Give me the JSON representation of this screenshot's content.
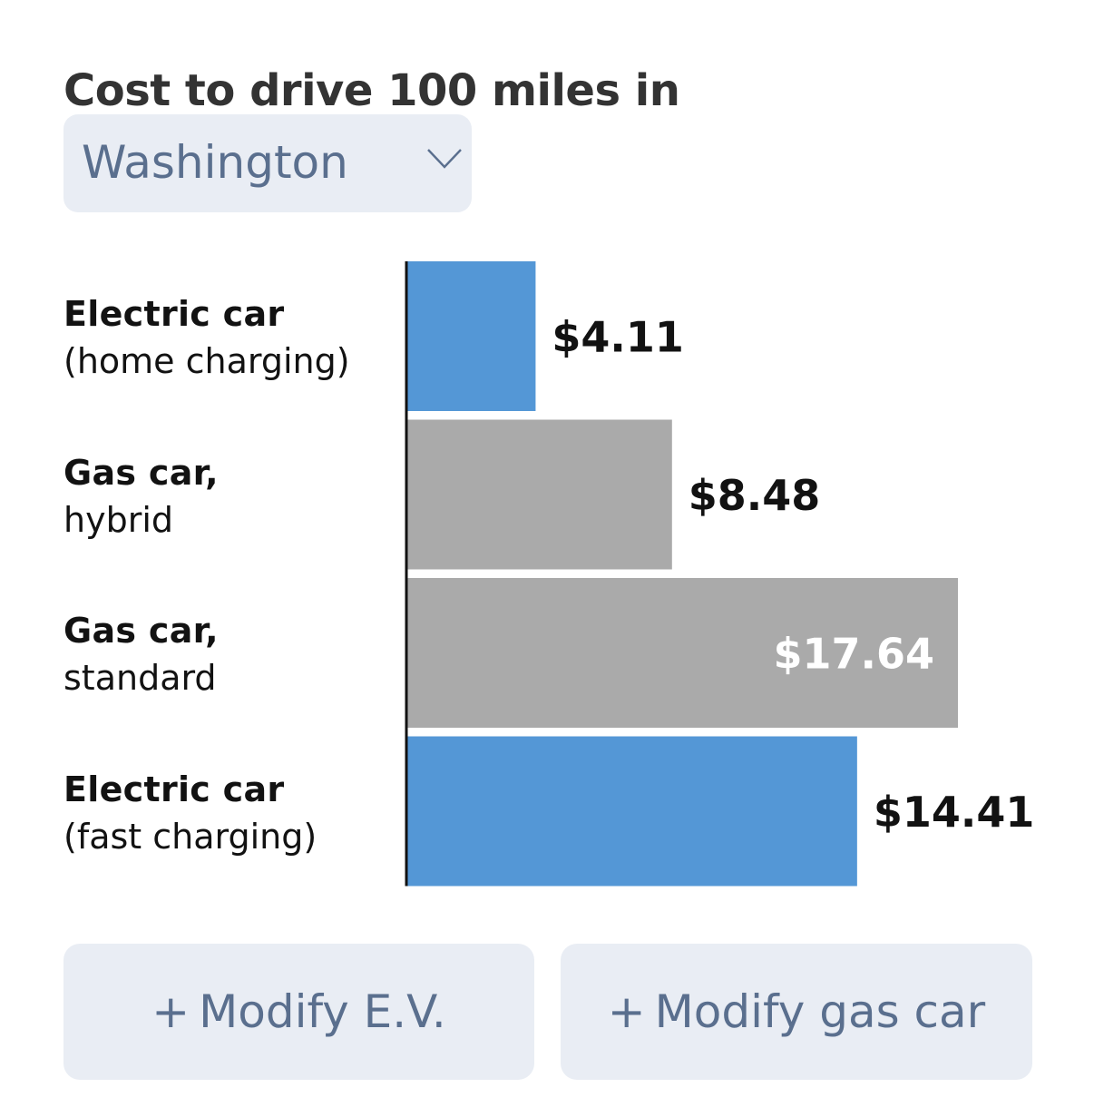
{
  "header": {
    "title": "Cost to drive 100 miles in"
  },
  "state_select": {
    "value": "Washington",
    "icon": "chevron-down-icon"
  },
  "rows": [
    {
      "label_line1": "Electric car",
      "label_line2": "(home charging)"
    },
    {
      "label_line1": "Gas car,",
      "label_line2": "hybrid"
    },
    {
      "label_line1": "Gas car,",
      "label_line2": "standard"
    },
    {
      "label_line1": "Electric car",
      "label_line2": "(fast charging)"
    }
  ],
  "chart_data": {
    "type": "bar",
    "orientation": "horizontal",
    "categories": [
      "Electric car (home charging)",
      "Gas car, hybrid",
      "Gas car, standard",
      "Electric car (fast charging)"
    ],
    "values": [
      4.11,
      8.48,
      17.64,
      14.41
    ],
    "value_labels": [
      "$4.11",
      "$8.48",
      "$17.64",
      "$14.41"
    ],
    "colors": [
      "#5497d6",
      "#aaaaaa",
      "#aaaaaa",
      "#5497d6"
    ],
    "label_colors": [
      "#121212",
      "#121212",
      "#ffffff",
      "#121212"
    ],
    "label_inside": [
      false,
      false,
      true,
      false
    ],
    "xlim": [
      0,
      17.64
    ],
    "grid": false,
    "legend": "none"
  },
  "buttons": {
    "modify_ev": {
      "plus": "+",
      "label": "Modify E.V."
    },
    "modify_gas": {
      "plus": "+",
      "label": "Modify gas car"
    }
  },
  "colors": {
    "ev_blue": "#5497d6",
    "gas_gray": "#aaaaaa",
    "control_bg": "#e9edf4",
    "control_text": "#5a6f8e"
  }
}
